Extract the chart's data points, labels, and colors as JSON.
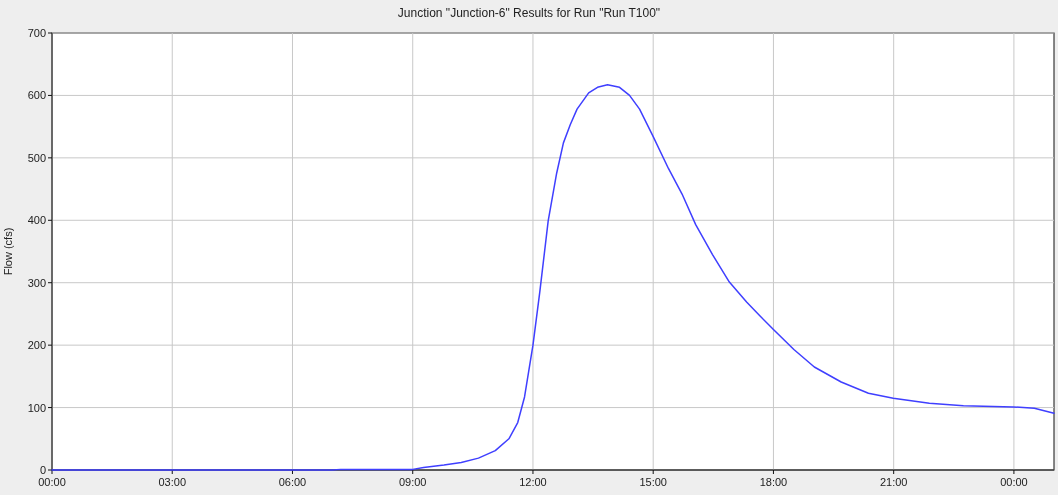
{
  "chart_data": {
    "type": "line",
    "title": "Junction \"Junction-6\" Results for Run \"Run T100\"",
    "ylabel": "Flow (cfs)",
    "xlim": [
      0,
      25
    ],
    "ylim": [
      0,
      700
    ],
    "xticks": [
      {
        "value": 0,
        "label": "00:00"
      },
      {
        "value": 3,
        "label": "03:00"
      },
      {
        "value": 6,
        "label": "06:00"
      },
      {
        "value": 9,
        "label": "09:00"
      },
      {
        "value": 12,
        "label": "12:00"
      },
      {
        "value": 15,
        "label": "15:00"
      },
      {
        "value": 18,
        "label": "18:00"
      },
      {
        "value": 21,
        "label": "21:00"
      },
      {
        "value": 24,
        "label": "00:00"
      }
    ],
    "yticks": [
      0,
      100,
      200,
      300,
      400,
      500,
      600,
      700
    ],
    "grid": true,
    "line_style": "solid",
    "marker": "none",
    "series": [
      {
        "color": "#3f3fff",
        "x": [
          0,
          7,
          7.2,
          9,
          9.27,
          9.78,
          10.21,
          10.64,
          11.06,
          11.4,
          11.62,
          11.79,
          12.0,
          12.17,
          12.38,
          12.59,
          12.76,
          12.93,
          13.1,
          13.39,
          13.61,
          13.86,
          14.16,
          14.41,
          14.66,
          15.0,
          15.38,
          15.72,
          16.06,
          16.48,
          16.9,
          17.33,
          17.66,
          18.0,
          18.51,
          19.02,
          19.69,
          20.37,
          20.99,
          21.89,
          22.74,
          23.98,
          24.51,
          25.0
        ],
        "values": [
          0,
          0,
          1,
          1,
          4,
          8,
          12,
          19,
          31,
          50,
          76,
          117,
          200,
          285,
          399,
          475,
          524,
          553,
          578,
          604,
          613,
          617,
          613,
          600,
          578,
          534,
          483,
          442,
          393,
          345,
          301,
          269,
          247,
          225,
          193,
          165,
          141,
          123,
          115,
          107,
          103,
          101,
          99,
          91
        ]
      }
    ]
  }
}
